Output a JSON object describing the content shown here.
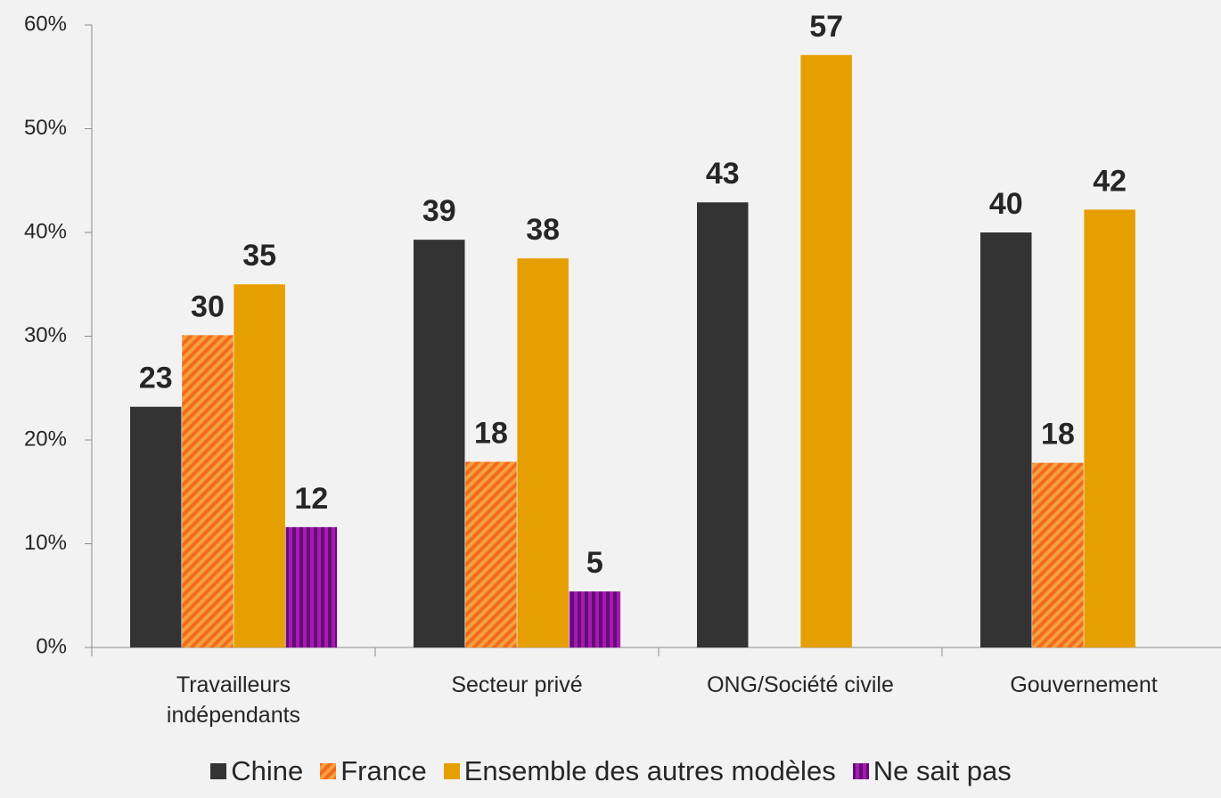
{
  "chart_data": {
    "type": "bar",
    "categories": [
      "Travailleurs indépendants",
      "Secteur privé",
      "ONG/Société civile",
      "Gouvernement"
    ],
    "series": [
      {
        "name": "Chine",
        "color": "#333333",
        "values": [
          23.2,
          39.3,
          42.9,
          40.0
        ],
        "value_labels": [
          "23",
          "39",
          "43",
          "40"
        ]
      },
      {
        "name": "France",
        "color": "#f6a13a",
        "pattern": "diagonal",
        "pattern_color": "#f26a21",
        "values": [
          30.1,
          17.9,
          null,
          17.8
        ],
        "value_labels": [
          "30",
          "18",
          null,
          "18"
        ]
      },
      {
        "name": "Ensemble des autres modèles",
        "color": "#e69f00",
        "values": [
          35.0,
          37.5,
          57.1,
          42.2
        ],
        "value_labels": [
          "35",
          "38",
          "57",
          "42"
        ]
      },
      {
        "name": "Ne sait pas",
        "color": "#a21caf",
        "pattern": "vertical",
        "pattern_color": "#6a0a7a",
        "values": [
          11.6,
          5.4,
          null,
          null
        ],
        "value_labels": [
          "12",
          "5",
          null,
          null
        ]
      }
    ],
    "ylim": [
      0,
      60
    ],
    "yticks": [
      {
        "value": 0,
        "label": "0%"
      },
      {
        "value": 10,
        "label": "10%"
      },
      {
        "value": 20,
        "label": "20%"
      },
      {
        "value": 30,
        "label": "30%"
      },
      {
        "value": 40,
        "label": "40%"
      },
      {
        "value": 50,
        "label": "50%"
      },
      {
        "value": 60,
        "label": "60%"
      }
    ],
    "legend": "bottom"
  }
}
